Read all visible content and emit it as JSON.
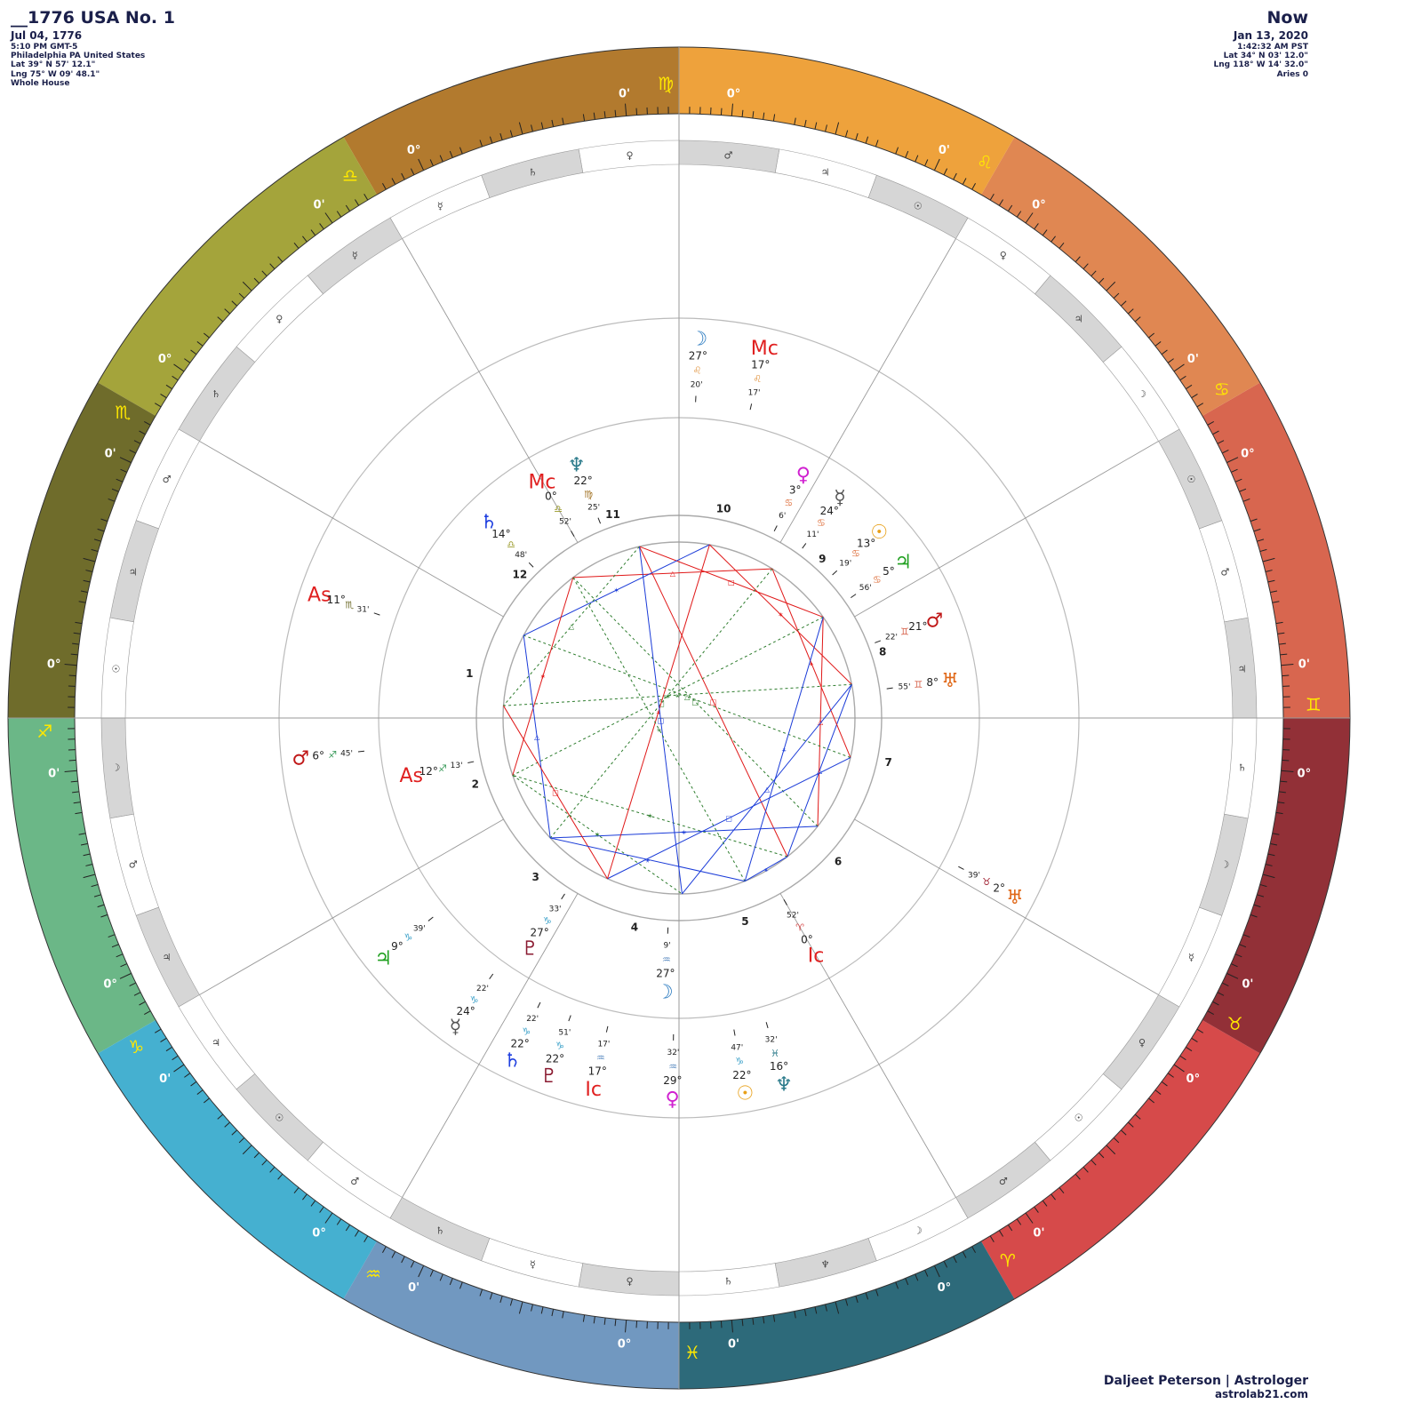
{
  "natal": {
    "title": "__1776 USA No. 1",
    "date": "Jul 04, 1776",
    "time": "5:10 PM GMT-5",
    "place": "Philadelphia PA United States",
    "lat": "Lat 39° N 57' 12.1\"",
    "lng": "Lng 75° W 09' 48.1\"",
    "house_system": "Whole House"
  },
  "transit": {
    "title": "Now",
    "date": "Jan 13, 2020",
    "time": "1:42:32 AM PST",
    "lat": "Lat 34° N 03' 12.0\"",
    "lng": "Lng 118° W 14' 32.0\"",
    "zodiac": "Aries 0"
  },
  "footer": {
    "name": "Daljeet Peterson | Astrologer",
    "website": "astrolab21.com"
  },
  "signs": [
    {
      "glyph": "♈",
      "color": "#d64a4a",
      "deg": "0°",
      "min": "0'"
    },
    {
      "glyph": "♉",
      "color": "#923037",
      "deg": "0°",
      "min": "0'"
    },
    {
      "glyph": "♊",
      "color": "#d8664f",
      "deg": "0°",
      "min": "0'"
    },
    {
      "glyph": "♋",
      "color": "#e08752",
      "deg": "0°",
      "min": "0'"
    },
    {
      "glyph": "♌",
      "color": "#eea23c",
      "deg": "0°",
      "min": "0'"
    },
    {
      "glyph": "♍",
      "color": "#b27a2e",
      "deg": "0°",
      "min": "0'"
    },
    {
      "glyph": "♎",
      "color": "#a4a43b",
      "deg": "0°",
      "min": "0'"
    },
    {
      "glyph": "♏",
      "color": "#6f6c2b",
      "deg": "0°",
      "min": "0'"
    },
    {
      "glyph": "♐",
      "color": "#6bb787",
      "deg": "0°",
      "min": "0'"
    },
    {
      "glyph": "♑",
      "color": "#45b0d0",
      "deg": "0°",
      "min": "0'"
    },
    {
      "glyph": "♒",
      "color": "#7198c0",
      "deg": "0°",
      "min": "0'"
    },
    {
      "glyph": "♓",
      "color": "#2d6a7a",
      "deg": "0°",
      "min": "0'"
    }
  ],
  "decan_rulers": [
    "♂",
    "☉",
    "♀",
    "☿",
    "☽",
    "♄",
    "♃",
    "♂",
    "☉",
    "☽",
    "♃",
    "♀",
    "☉",
    "♃",
    "♂",
    "♀",
    "♄",
    "☿",
    "☿",
    "♀",
    "♄",
    "♂",
    "♃",
    "☉",
    "☽",
    "♂",
    "♃",
    "♃",
    "☉",
    "♂",
    "♄",
    "☿",
    "♀",
    "♄",
    "♆",
    "☽"
  ],
  "house_numbers": [
    "1",
    "2",
    "3",
    "4",
    "5",
    "6",
    "7",
    "8",
    "9",
    "10",
    "11",
    "12"
  ],
  "natal_points": [
    {
      "key": "as",
      "glyph": "As",
      "deg": "12°",
      "sign": "♐",
      "min": "13'",
      "color": "#e02020",
      "sign_color": "#3a9a5a"
    },
    {
      "key": "ic",
      "glyph": "Ic",
      "deg": "0°",
      "sign": "♈",
      "min": "52'",
      "color": "#e02020",
      "sign_color": "#d64a4a"
    },
    {
      "key": "mc",
      "glyph": "Mc",
      "deg": "0°",
      "sign": "♎",
      "min": "52'",
      "color": "#e02020",
      "sign_color": "#9a9a2a"
    },
    {
      "key": "moon",
      "glyph": "☽",
      "deg": "27°",
      "sign": "♒",
      "min": "9'",
      "color": "#2a7ac0",
      "sign_color": "#5a8ac0"
    },
    {
      "key": "pluto",
      "glyph": "♇",
      "deg": "27°",
      "sign": "♑",
      "min": "33'",
      "color": "#8a1a30",
      "sign_color": "#3aa0c8"
    },
    {
      "key": "neptune",
      "glyph": "♆",
      "deg": "22°",
      "sign": "♍",
      "min": "25'",
      "color": "#2a7a8a",
      "sign_color": "#a07020"
    },
    {
      "key": "saturn",
      "glyph": "♄",
      "deg": "14°",
      "sign": "♎",
      "min": "48'",
      "color": "#2040e0",
      "sign_color": "#9a9a2a"
    },
    {
      "key": "mercury",
      "glyph": "☿",
      "deg": "24°",
      "sign": "♋",
      "min": "11'",
      "color": "#555555",
      "sign_color": "#e07848"
    },
    {
      "key": "sun",
      "glyph": "☉",
      "deg": "13°",
      "sign": "♋",
      "min": "19'",
      "color": "#e8a018",
      "sign_color": "#e07848"
    },
    {
      "key": "jupiter",
      "glyph": "♃",
      "deg": "5°",
      "sign": "♋",
      "min": "56'",
      "color": "#20a020",
      "sign_color": "#e07848"
    },
    {
      "key": "venus",
      "glyph": "♀",
      "deg": "3°",
      "sign": "♋",
      "min": "6'",
      "color": "#d020d0",
      "sign_color": "#e07848"
    },
    {
      "key": "mars",
      "glyph": "♂",
      "deg": "21°",
      "sign": "♊",
      "min": "22'",
      "color": "#c01818",
      "sign_color": "#d8664f"
    },
    {
      "key": "uranus",
      "glyph": "♅",
      "deg": "8°",
      "sign": "♊",
      "min": "55'",
      "color": "#e06818",
      "sign_color": "#d8664f"
    }
  ],
  "transit_points": [
    {
      "key": "as",
      "glyph": "As",
      "deg": "11°",
      "sign": "♏",
      "min": "31'",
      "color": "#e02020",
      "sign_color": "#6f6c2b"
    },
    {
      "key": "mc",
      "glyph": "Mc",
      "deg": "17°",
      "sign": "♌",
      "min": "17'",
      "color": "#e02020",
      "sign_color": "#e09038"
    },
    {
      "key": "moon",
      "glyph": "☽",
      "deg": "27°",
      "sign": "♌",
      "min": "20'",
      "color": "#2a7ac0",
      "sign_color": "#e09038"
    },
    {
      "key": "mars",
      "glyph": "♂",
      "deg": "6°",
      "sign": "♐",
      "min": "45'",
      "color": "#c01818",
      "sign_color": "#3a9a5a"
    },
    {
      "key": "uranus",
      "glyph": "♅",
      "deg": "2°",
      "sign": "♉",
      "min": "39'",
      "color": "#e06818",
      "sign_color": "#a02030"
    },
    {
      "key": "neptune",
      "glyph": "♆",
      "deg": "16°",
      "sign": "♓",
      "min": "32'",
      "color": "#2a7a8a",
      "sign_color": "#2a7a8a"
    },
    {
      "key": "venus",
      "glyph": "♀",
      "deg": "29°",
      "sign": "♒",
      "min": "32'",
      "color": "#d020d0",
      "sign_color": "#5a8ac0"
    },
    {
      "key": "ic",
      "glyph": "Ic",
      "deg": "17°",
      "sign": "♒",
      "min": "17'",
      "color": "#e02020",
      "sign_color": "#5a8ac0"
    },
    {
      "key": "mercury",
      "glyph": "☿",
      "deg": "24°",
      "sign": "♑",
      "min": "22'",
      "color": "#555555",
      "sign_color": "#3aa0c8"
    },
    {
      "key": "saturn",
      "glyph": "♄",
      "deg": "22°",
      "sign": "♑",
      "min": "22'",
      "color": "#2040e0",
      "sign_color": "#3aa0c8"
    },
    {
      "key": "pluto",
      "glyph": "♇",
      "deg": "22°",
      "sign": "♑",
      "min": "51'",
      "color": "#8a1a30",
      "sign_color": "#3aa0c8"
    },
    {
      "key": "sun",
      "glyph": "☉",
      "deg": "22°",
      "sign": "♑",
      "min": "47'",
      "color": "#e8a018",
      "sign_color": "#3aa0c8"
    },
    {
      "key": "jupiter",
      "glyph": "♃",
      "deg": "9°",
      "sign": "♑",
      "min": "39'",
      "color": "#20a020",
      "sign_color": "#3aa0c8"
    }
  ],
  "aspect_symbols": [
    "△",
    "□",
    "✶",
    "⚹"
  ]
}
